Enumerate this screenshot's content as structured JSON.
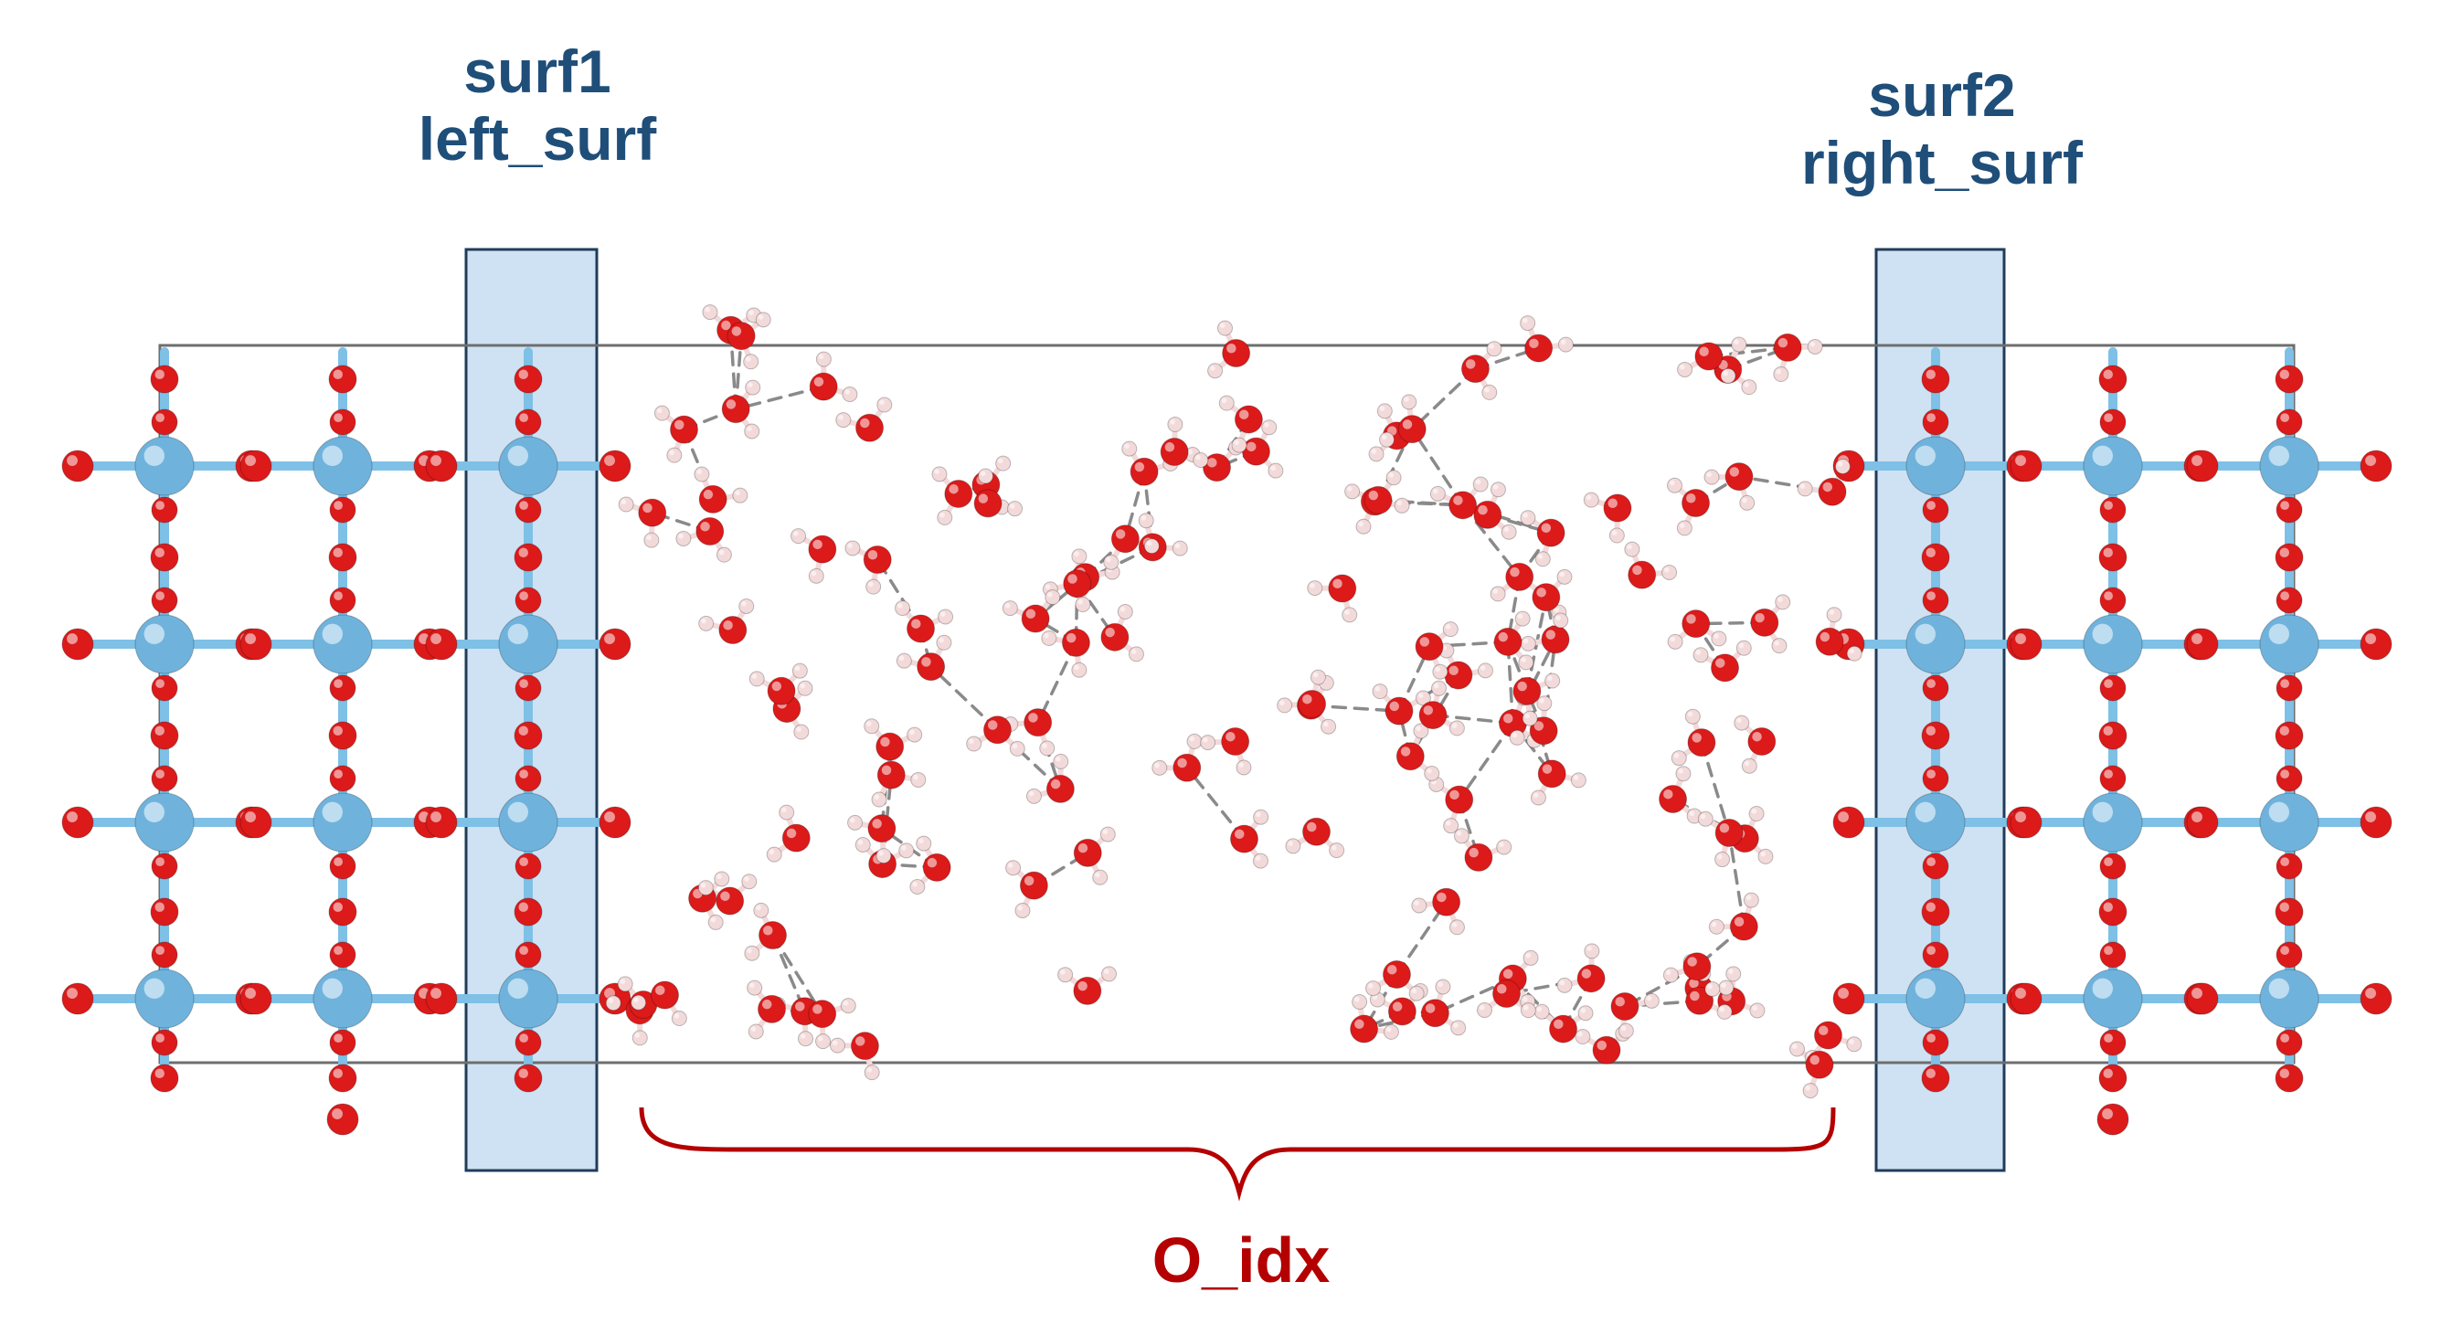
{
  "labels": {
    "left_surface_line1": "surf1",
    "left_surface_line2": "left_surf",
    "right_surface_line1": "surf2",
    "right_surface_line2": "right_surf",
    "water_region": "O_idx"
  },
  "colors": {
    "metal_atom": "#6fb3dd",
    "oxygen_atom": "#dc1a1a",
    "hydrogen_atom": "#f3dada",
    "bond_metal": "#7ec0e6",
    "hydrogen_bond": "#8a8a8a",
    "cell_outline": "#6e6e6e",
    "surface_highlight_fill": "#cfe2f3",
    "surface_highlight_stroke": "#1f3c5a",
    "surface_label": "#1f4e79",
    "water_label": "#b40000"
  },
  "structure": {
    "slab_columns_per_side": 3,
    "slab_rows": 4,
    "water_molecule_count": 120
  }
}
